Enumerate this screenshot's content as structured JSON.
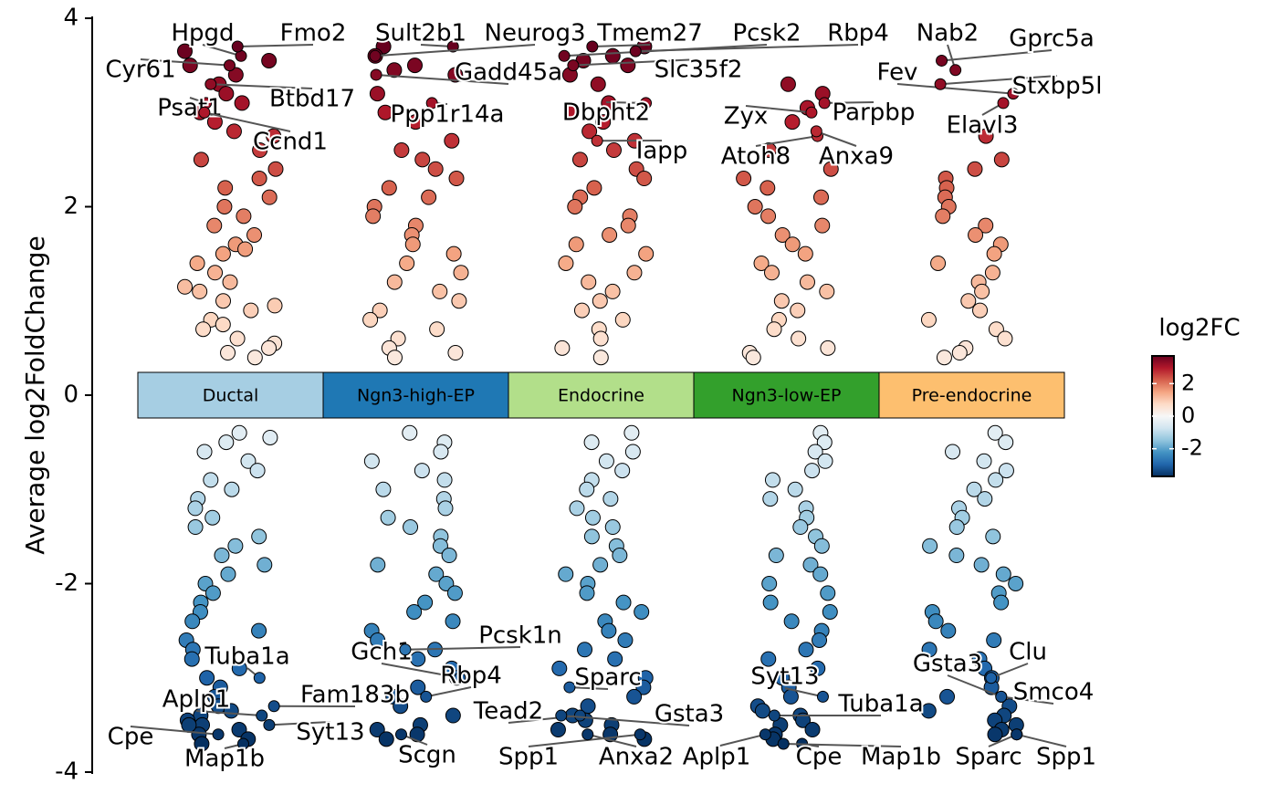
{
  "chart_data": {
    "type": "jitter",
    "y_label": "Average log2FoldChange",
    "ylim": [
      -4,
      4
    ],
    "yticks": [
      -4,
      -2,
      0,
      2,
      4
    ],
    "colorbar": {
      "title": "log2FC",
      "lim": [
        -3.7,
        3.7
      ],
      "ticks": [
        -2,
        0,
        2
      ],
      "colors": [
        "#053061",
        "#2166ac",
        "#4393c3",
        "#92c5de",
        "#d1e5f0",
        "#f7f7f7",
        "#fddbc7",
        "#f4a582",
        "#d6604d",
        "#b2182b",
        "#67001f"
      ]
    },
    "series": [
      {
        "name": "Ductal",
        "color": "#a6cee3",
        "values": [
          3.65,
          3.55,
          3.5,
          3.4,
          3.3,
          3.2,
          3.1,
          3.0,
          2.9,
          2.8,
          2.75,
          2.6,
          2.5,
          2.4,
          2.3,
          2.2,
          2.1,
          2.0,
          1.9,
          1.8,
          1.7,
          1.6,
          1.55,
          1.5,
          1.4,
          1.3,
          1.2,
          1.15,
          1.1,
          1.0,
          0.95,
          0.9,
          0.8,
          0.75,
          0.7,
          0.6,
          0.55,
          0.5,
          0.45,
          0.4,
          -0.4,
          -0.45,
          -0.5,
          -0.6,
          -0.7,
          -0.8,
          -0.9,
          -1.0,
          -1.1,
          -1.2,
          -1.3,
          -1.4,
          -1.5,
          -1.6,
          -1.7,
          -1.8,
          -1.9,
          -2.0,
          -2.1,
          -2.2,
          -2.3,
          -2.4,
          -2.5,
          -2.6,
          -2.7,
          -2.8,
          -2.9,
          -3.0,
          -3.1,
          -3.2,
          -3.3,
          -3.35,
          -3.4,
          -3.45,
          -3.5,
          -3.55,
          -3.6,
          -3.65,
          -3.7,
          -3.5
        ],
        "labels": [
          {
            "text": "Hpgd",
            "value": 3.6
          },
          {
            "text": "Fmo2",
            "value": 3.7
          },
          {
            "text": "Cyr61",
            "value": 3.5
          },
          {
            "text": "Psat1",
            "value": 3.1
          },
          {
            "text": "Btbd17",
            "value": 3.3
          },
          {
            "text": "Ccnd1",
            "value": 3.0
          },
          {
            "text": "Tuba1a",
            "value": -3.0
          },
          {
            "text": "Aplp1",
            "value": -3.4
          },
          {
            "text": "Fam183b",
            "value": -3.3
          },
          {
            "text": "Cpe",
            "value": -3.6
          },
          {
            "text": "Syt13",
            "value": -3.5
          },
          {
            "text": "Map1b",
            "value": -3.7
          }
        ]
      },
      {
        "name": "Ngn3-high-EP",
        "color": "#1f78b4",
        "values": [
          3.7,
          3.6,
          3.5,
          3.45,
          3.4,
          3.2,
          3.0,
          2.9,
          2.7,
          2.6,
          2.5,
          2.4,
          2.3,
          2.2,
          2.1,
          2.0,
          1.9,
          1.8,
          1.7,
          1.6,
          1.5,
          1.4,
          1.3,
          1.2,
          1.1,
          1.0,
          0.9,
          0.8,
          0.7,
          0.6,
          0.5,
          0.45,
          0.4,
          -0.4,
          -0.5,
          -0.6,
          -0.7,
          -0.8,
          -0.9,
          -1.0,
          -1.1,
          -1.2,
          -1.3,
          -1.4,
          -1.5,
          -1.6,
          -1.7,
          -1.8,
          -1.9,
          -2.0,
          -2.1,
          -2.2,
          -2.3,
          -2.4,
          -2.5,
          -2.6,
          -2.7,
          -2.8,
          -2.9,
          -3.0,
          -3.1,
          -3.2,
          -3.3,
          -3.4,
          -3.5,
          -3.55,
          -3.6,
          -3.65
        ],
        "labels": [
          {
            "text": "Sult2b1",
            "value": 3.7
          },
          {
            "text": "Neurog3",
            "value": 3.6
          },
          {
            "text": "Gadd45a",
            "value": 3.4
          },
          {
            "text": "Ppp1r14a",
            "value": 3.1
          },
          {
            "text": "Gch1",
            "value": -3.0
          },
          {
            "text": "Pcsk1n",
            "value": -2.7
          },
          {
            "text": "Rbp4",
            "value": -3.2
          },
          {
            "text": "Scgn",
            "value": -3.6
          }
        ]
      },
      {
        "name": "Endocrine",
        "color": "#b2df8a",
        "values": [
          3.7,
          3.6,
          3.55,
          3.5,
          3.4,
          3.3,
          3.1,
          3.0,
          2.9,
          2.8,
          2.7,
          2.6,
          2.5,
          2.4,
          2.3,
          2.2,
          2.1,
          2.0,
          1.9,
          1.8,
          1.7,
          1.6,
          1.5,
          1.4,
          1.3,
          1.2,
          1.1,
          1.0,
          0.9,
          0.8,
          0.7,
          0.6,
          0.5,
          0.4,
          -0.4,
          -0.5,
          -0.6,
          -0.7,
          -0.8,
          -0.9,
          -1.0,
          -1.1,
          -1.2,
          -1.3,
          -1.4,
          -1.5,
          -1.6,
          -1.7,
          -1.8,
          -1.9,
          -2.0,
          -2.1,
          -2.2,
          -2.3,
          -2.4,
          -2.5,
          -2.6,
          -2.7,
          -2.8,
          -2.9,
          -3.0,
          -3.1,
          -3.2,
          -3.3,
          -3.4,
          -3.45,
          -3.5,
          -3.55,
          -3.6,
          -3.65
        ],
        "labels": [
          {
            "text": "Tmem27",
            "value": 3.7
          },
          {
            "text": "Pcsk2",
            "value": 3.6
          },
          {
            "text": "Rbp4",
            "value": 3.65
          },
          {
            "text": "Slc35f2",
            "value": 3.5
          },
          {
            "text": "Dbpht2",
            "value": 3.1
          },
          {
            "text": "Iapp",
            "value": 2.7
          },
          {
            "text": "Sparc",
            "value": -3.1
          },
          {
            "text": "Tead2",
            "value": -3.4
          },
          {
            "text": "Gsta3",
            "value": -3.4
          },
          {
            "text": "Spp1",
            "value": -3.6
          },
          {
            "text": "Anxa2",
            "value": -3.6
          }
        ]
      },
      {
        "name": "Ngn3-low-EP",
        "color": "#33a02c",
        "values": [
          3.3,
          3.2,
          3.05,
          2.9,
          2.6,
          2.4,
          2.3,
          2.2,
          2.1,
          2.0,
          1.9,
          1.8,
          1.7,
          1.6,
          1.5,
          1.4,
          1.3,
          1.2,
          1.1,
          1.0,
          0.9,
          0.8,
          0.7,
          0.6,
          0.5,
          0.45,
          0.4,
          -0.4,
          -0.5,
          -0.6,
          -0.7,
          -0.8,
          -0.9,
          -1.0,
          -1.1,
          -1.2,
          -1.3,
          -1.4,
          -1.5,
          -1.6,
          -1.7,
          -1.8,
          -1.9,
          -2.0,
          -2.1,
          -2.2,
          -2.3,
          -2.4,
          -2.5,
          -2.6,
          -2.7,
          -2.8,
          -2.9,
          -3.0,
          -3.1,
          -3.2,
          -3.3,
          -3.35,
          -3.4,
          -3.45,
          -3.5,
          -3.55,
          -3.6,
          -3.65
        ],
        "labels": [
          {
            "text": "Zyx",
            "value": 3.0
          },
          {
            "text": "Atoh8",
            "value": 2.75
          },
          {
            "text": "Parpbp",
            "value": 3.1
          },
          {
            "text": "Anxa9",
            "value": 2.8
          },
          {
            "text": "Syt13",
            "value": -3.2
          },
          {
            "text": "Tuba1a",
            "value": -3.4
          },
          {
            "text": "Aplp1",
            "value": -3.6
          },
          {
            "text": "Cpe",
            "value": -3.7
          },
          {
            "text": "Map1b",
            "value": -3.7
          }
        ]
      },
      {
        "name": "Pre-endocrine",
        "color": "#fdbf6f",
        "values": [
          2.75,
          2.5,
          2.4,
          2.3,
          2.2,
          2.1,
          2.0,
          1.9,
          1.8,
          1.7,
          1.6,
          1.5,
          1.4,
          1.3,
          1.2,
          1.1,
          1.0,
          0.9,
          0.8,
          0.7,
          0.6,
          0.5,
          0.45,
          0.4,
          -0.4,
          -0.5,
          -0.6,
          -0.7,
          -0.8,
          -0.9,
          -1.0,
          -1.1,
          -1.2,
          -1.3,
          -1.4,
          -1.5,
          -1.6,
          -1.7,
          -1.8,
          -1.9,
          -2.0,
          -2.1,
          -2.2,
          -2.3,
          -2.4,
          -2.5,
          -2.6,
          -2.7,
          -2.8,
          -2.9,
          -3.0,
          -3.1,
          -3.2,
          -3.3,
          -3.35,
          -3.4,
          -3.45,
          -3.5,
          -3.55,
          -3.6
        ],
        "labels": [
          {
            "text": "Nab2",
            "value": 3.45
          },
          {
            "text": "Gprc5a",
            "value": 3.55
          },
          {
            "text": "Fev",
            "value": 3.2
          },
          {
            "text": "Stxbp5l",
            "value": 3.3
          },
          {
            "text": "Elavl3",
            "value": 3.1
          },
          {
            "text": "Gsta3",
            "value": -3.2
          },
          {
            "text": "Clu",
            "value": -3.0
          },
          {
            "text": "Smco4",
            "value": -3.2
          },
          {
            "text": "Sparc",
            "value": -3.6
          },
          {
            "text": "Spp1",
            "value": -3.6
          }
        ]
      }
    ]
  }
}
